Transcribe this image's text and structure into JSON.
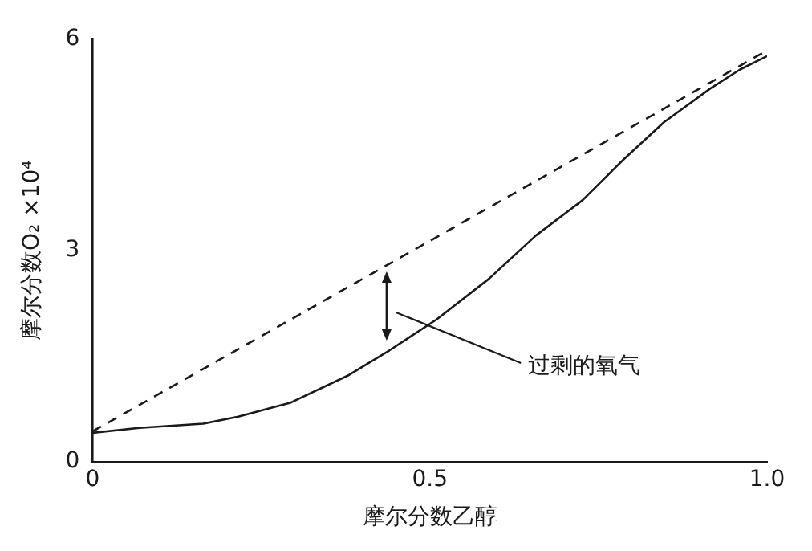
{
  "chart_data": {
    "type": "line",
    "xlabel": "摩尔分数乙醇",
    "ylabel": "摩尔分数O₂ ×10⁴",
    "xlim": [
      0,
      1
    ],
    "ylim": [
      0,
      6
    ],
    "xticks": [
      0,
      0.5,
      {
        "value": 1,
        "label": "1.0"
      }
    ],
    "yticks": [
      0,
      3,
      6
    ],
    "grid": false,
    "legend": false,
    "marker": "none",
    "series": [
      {
        "color": "#1a1a1a",
        "line_style": "dashed",
        "x": [
          0,
          1
        ],
        "values": [
          0.43,
          5.84
        ]
      },
      {
        "color": "#1a1a1a",
        "line_style": "solid",
        "x": [
          0,
          0.069,
          0.164,
          0.216,
          0.294,
          0.38,
          0.44,
          0.51,
          0.588,
          0.657,
          0.726,
          0.787,
          0.847,
          0.916,
          0.96,
          1
        ],
        "values": [
          0.41,
          0.48,
          0.54,
          0.64,
          0.84,
          1.23,
          1.58,
          2.02,
          2.6,
          3.21,
          3.71,
          4.29,
          4.82,
          5.3,
          5.57,
          5.76
        ]
      }
    ],
    "annotations": [
      "过剩的氧气"
    ]
  }
}
